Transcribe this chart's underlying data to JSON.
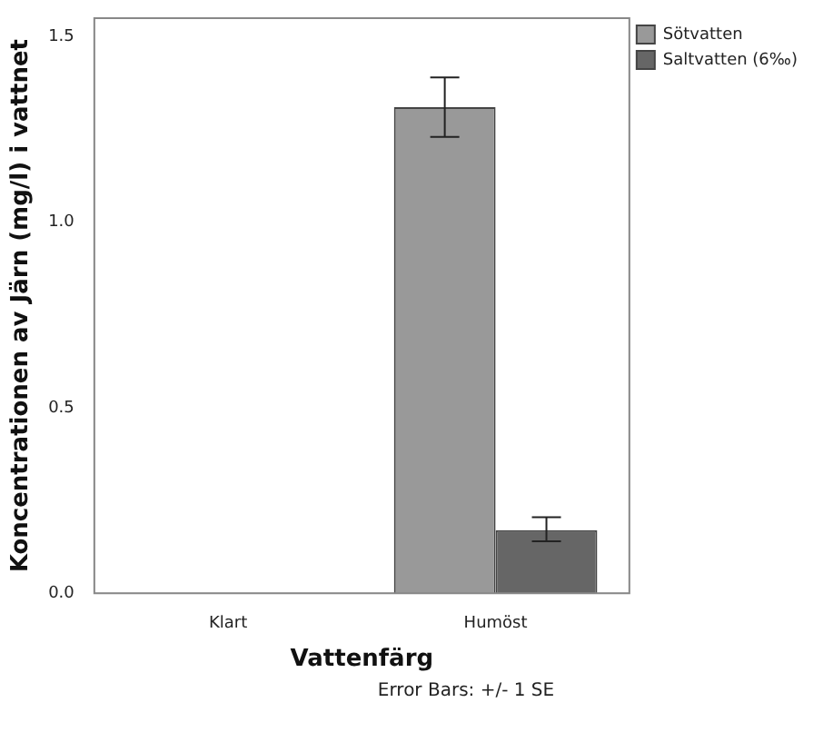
{
  "chart_data": {
    "type": "bar",
    "xlabel": "Vattenfärg",
    "ylabel": "Koncentrationen av Järn (mg/l) i vattnet",
    "categories": [
      "Klart",
      "Humöst"
    ],
    "series": [
      {
        "name": "Sötvatten",
        "color": "#999999",
        "values": [
          0,
          1.31
        ],
        "errors": [
          null,
          [
            1.23,
            1.39
          ]
        ]
      },
      {
        "name": "Saltvatten (6‰)",
        "color": "#666666",
        "values": [
          0,
          0.17
        ],
        "errors": [
          null,
          [
            0.14,
            0.205
          ]
        ]
      }
    ],
    "ylim": [
      0,
      1.55
    ],
    "yticks": [
      {
        "value": 0,
        "label": "0.0"
      },
      {
        "value": 0.5,
        "label": "0.5"
      },
      {
        "value": 1,
        "label": "1.0"
      },
      {
        "value": 1.5,
        "label": "1.5"
      }
    ],
    "grid": false,
    "legend": "top right",
    "annotations": [
      "Error Bars: +/- 1 SE"
    ]
  }
}
